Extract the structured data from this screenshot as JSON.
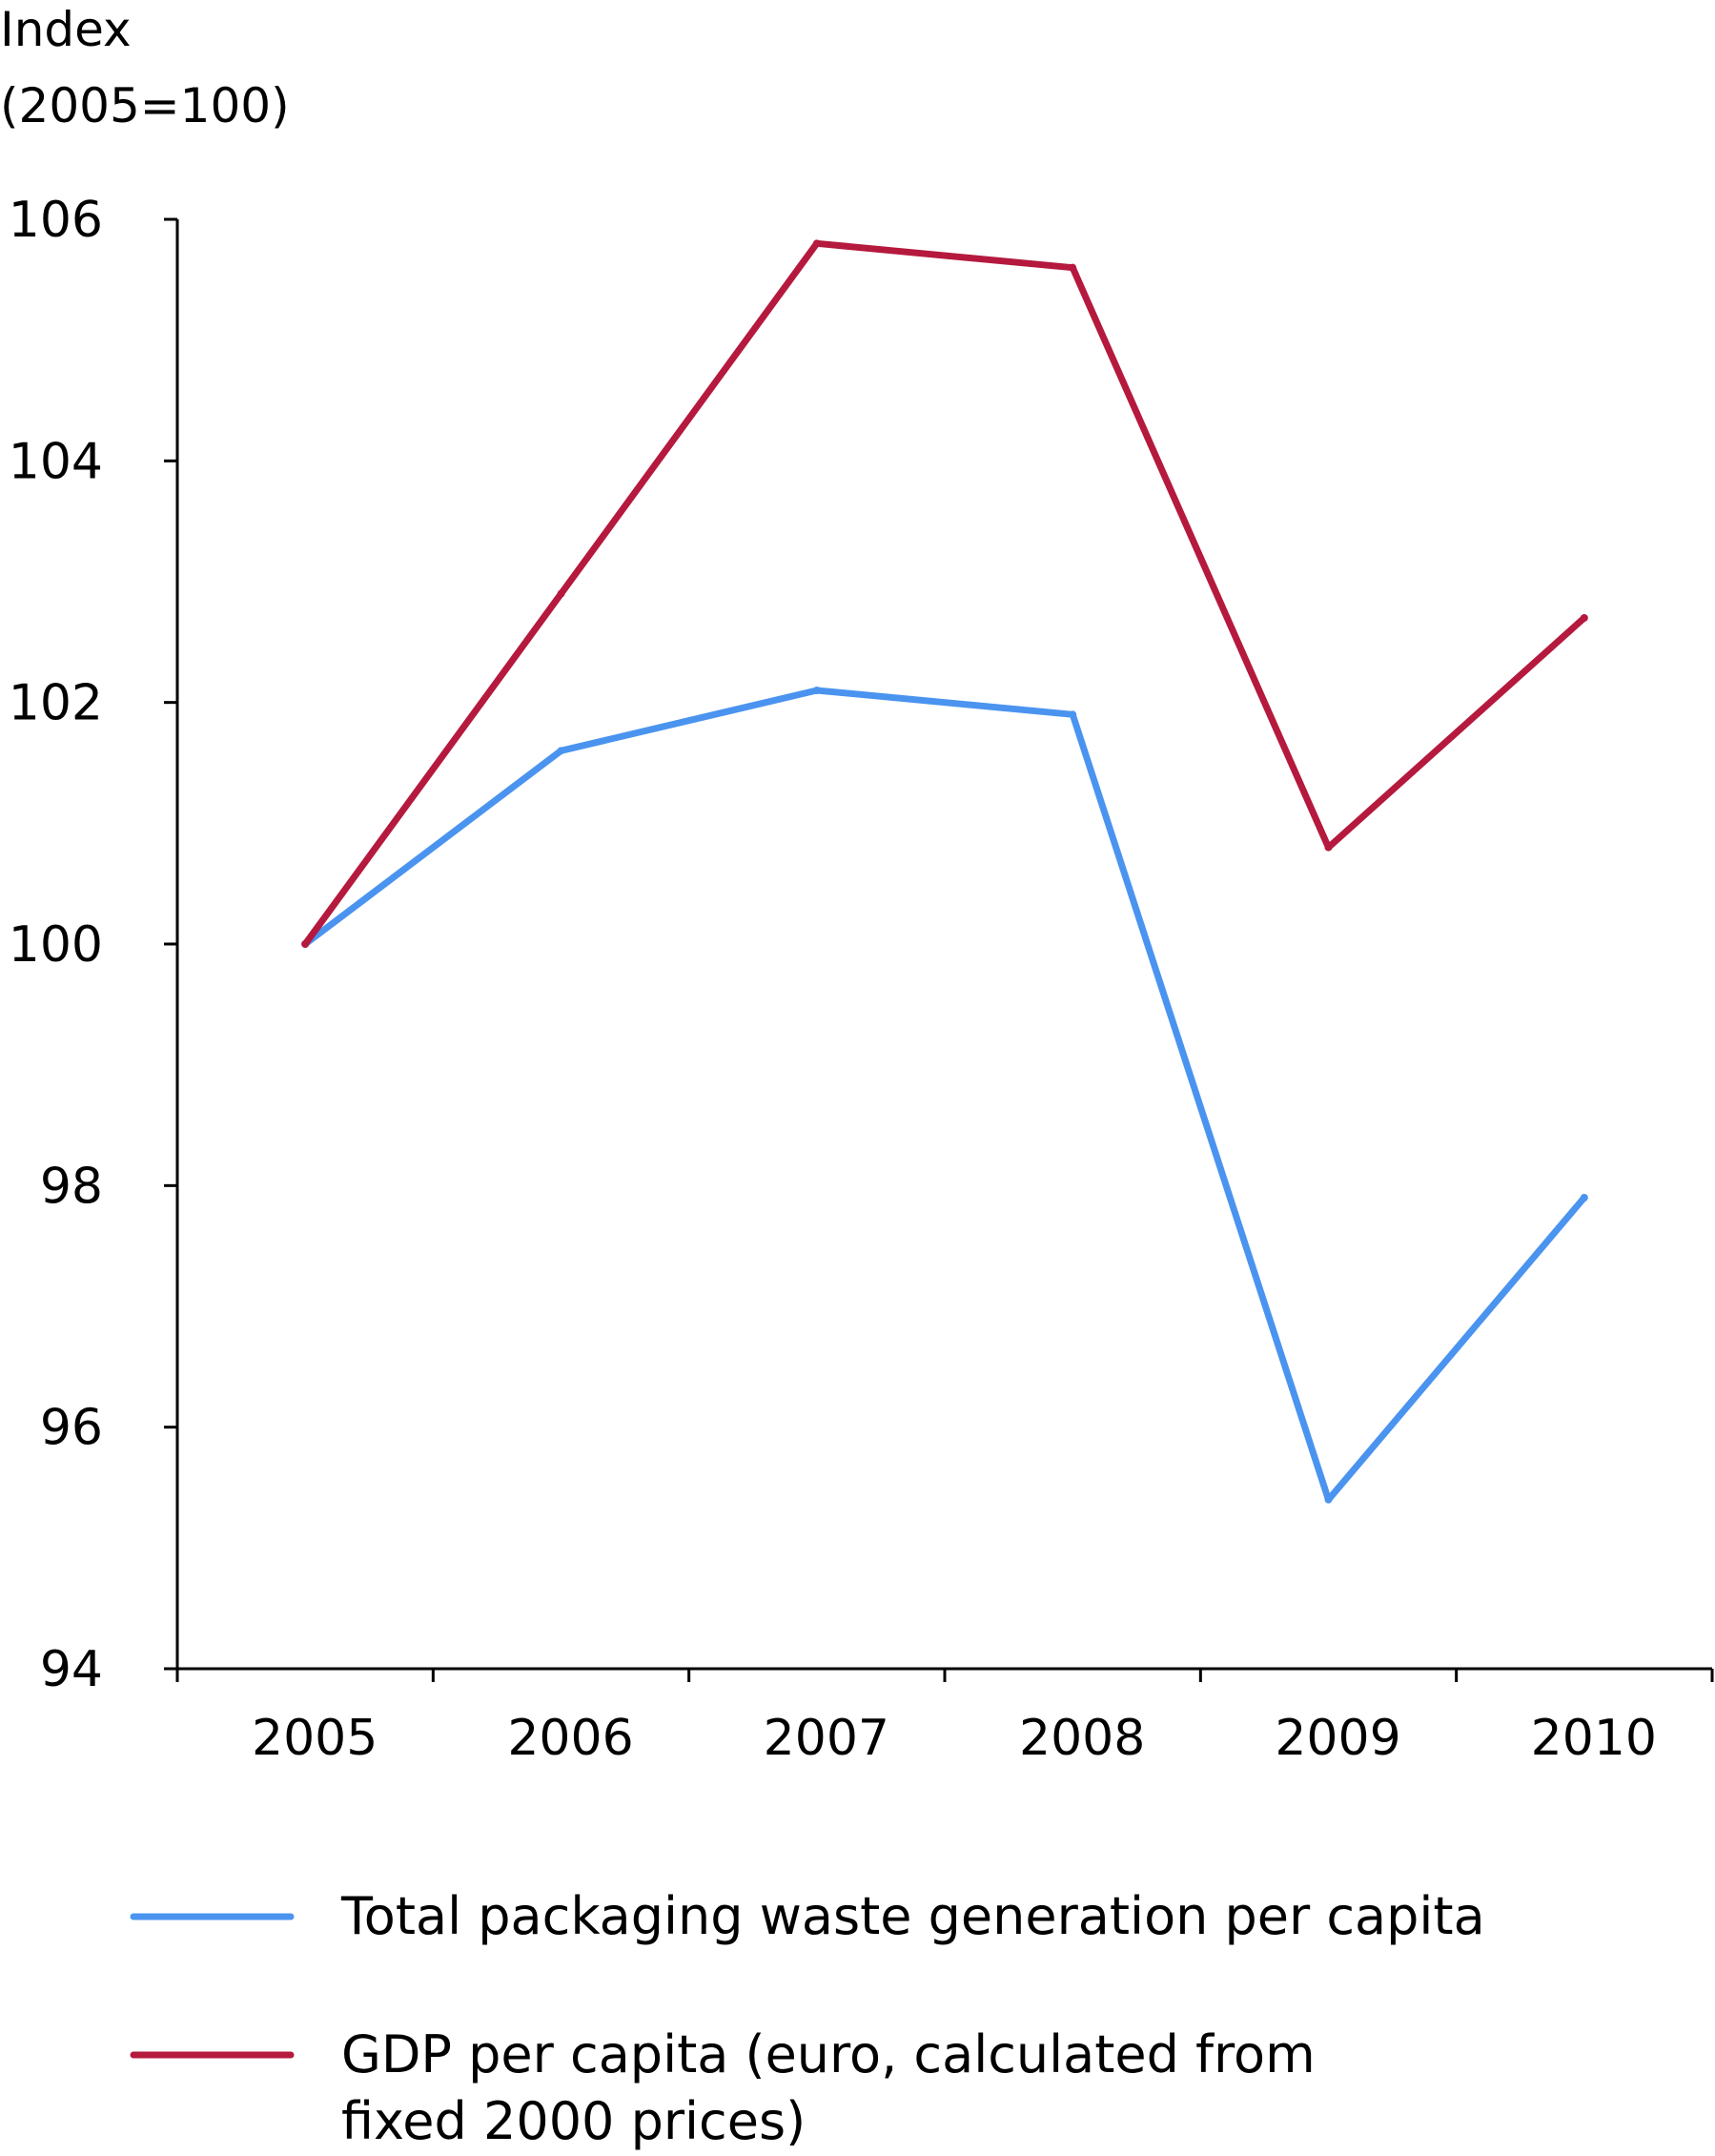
{
  "chart_data": {
    "type": "line",
    "title": "",
    "xlabel": "",
    "ylabel_lines": [
      "Index",
      "(2005=100)"
    ],
    "categories": [
      "2005",
      "2006",
      "2007",
      "2008",
      "2009",
      "2010"
    ],
    "y_ticks": [
      "94",
      "96",
      "98",
      "100",
      "102",
      "104",
      "106"
    ],
    "ylim": [
      94,
      106
    ],
    "grid": false,
    "legend_position": "bottom",
    "series": [
      {
        "name": "Total packaging waste generation per capita",
        "name_lines": [
          "Total packaging waste generation per capita"
        ],
        "color": "#4a94f0",
        "values": [
          100.0,
          101.6,
          102.1,
          101.9,
          95.4,
          97.9
        ]
      },
      {
        "name": "GDP per capita (euro, calculated from fixed 2000 prices)",
        "name_lines": [
          "GDP per capita (euro, calculated from",
          "fixed 2000 prices)"
        ],
        "color": "#b5193e",
        "values": [
          100.0,
          102.9,
          105.8,
          105.6,
          100.8,
          102.7
        ]
      }
    ]
  }
}
